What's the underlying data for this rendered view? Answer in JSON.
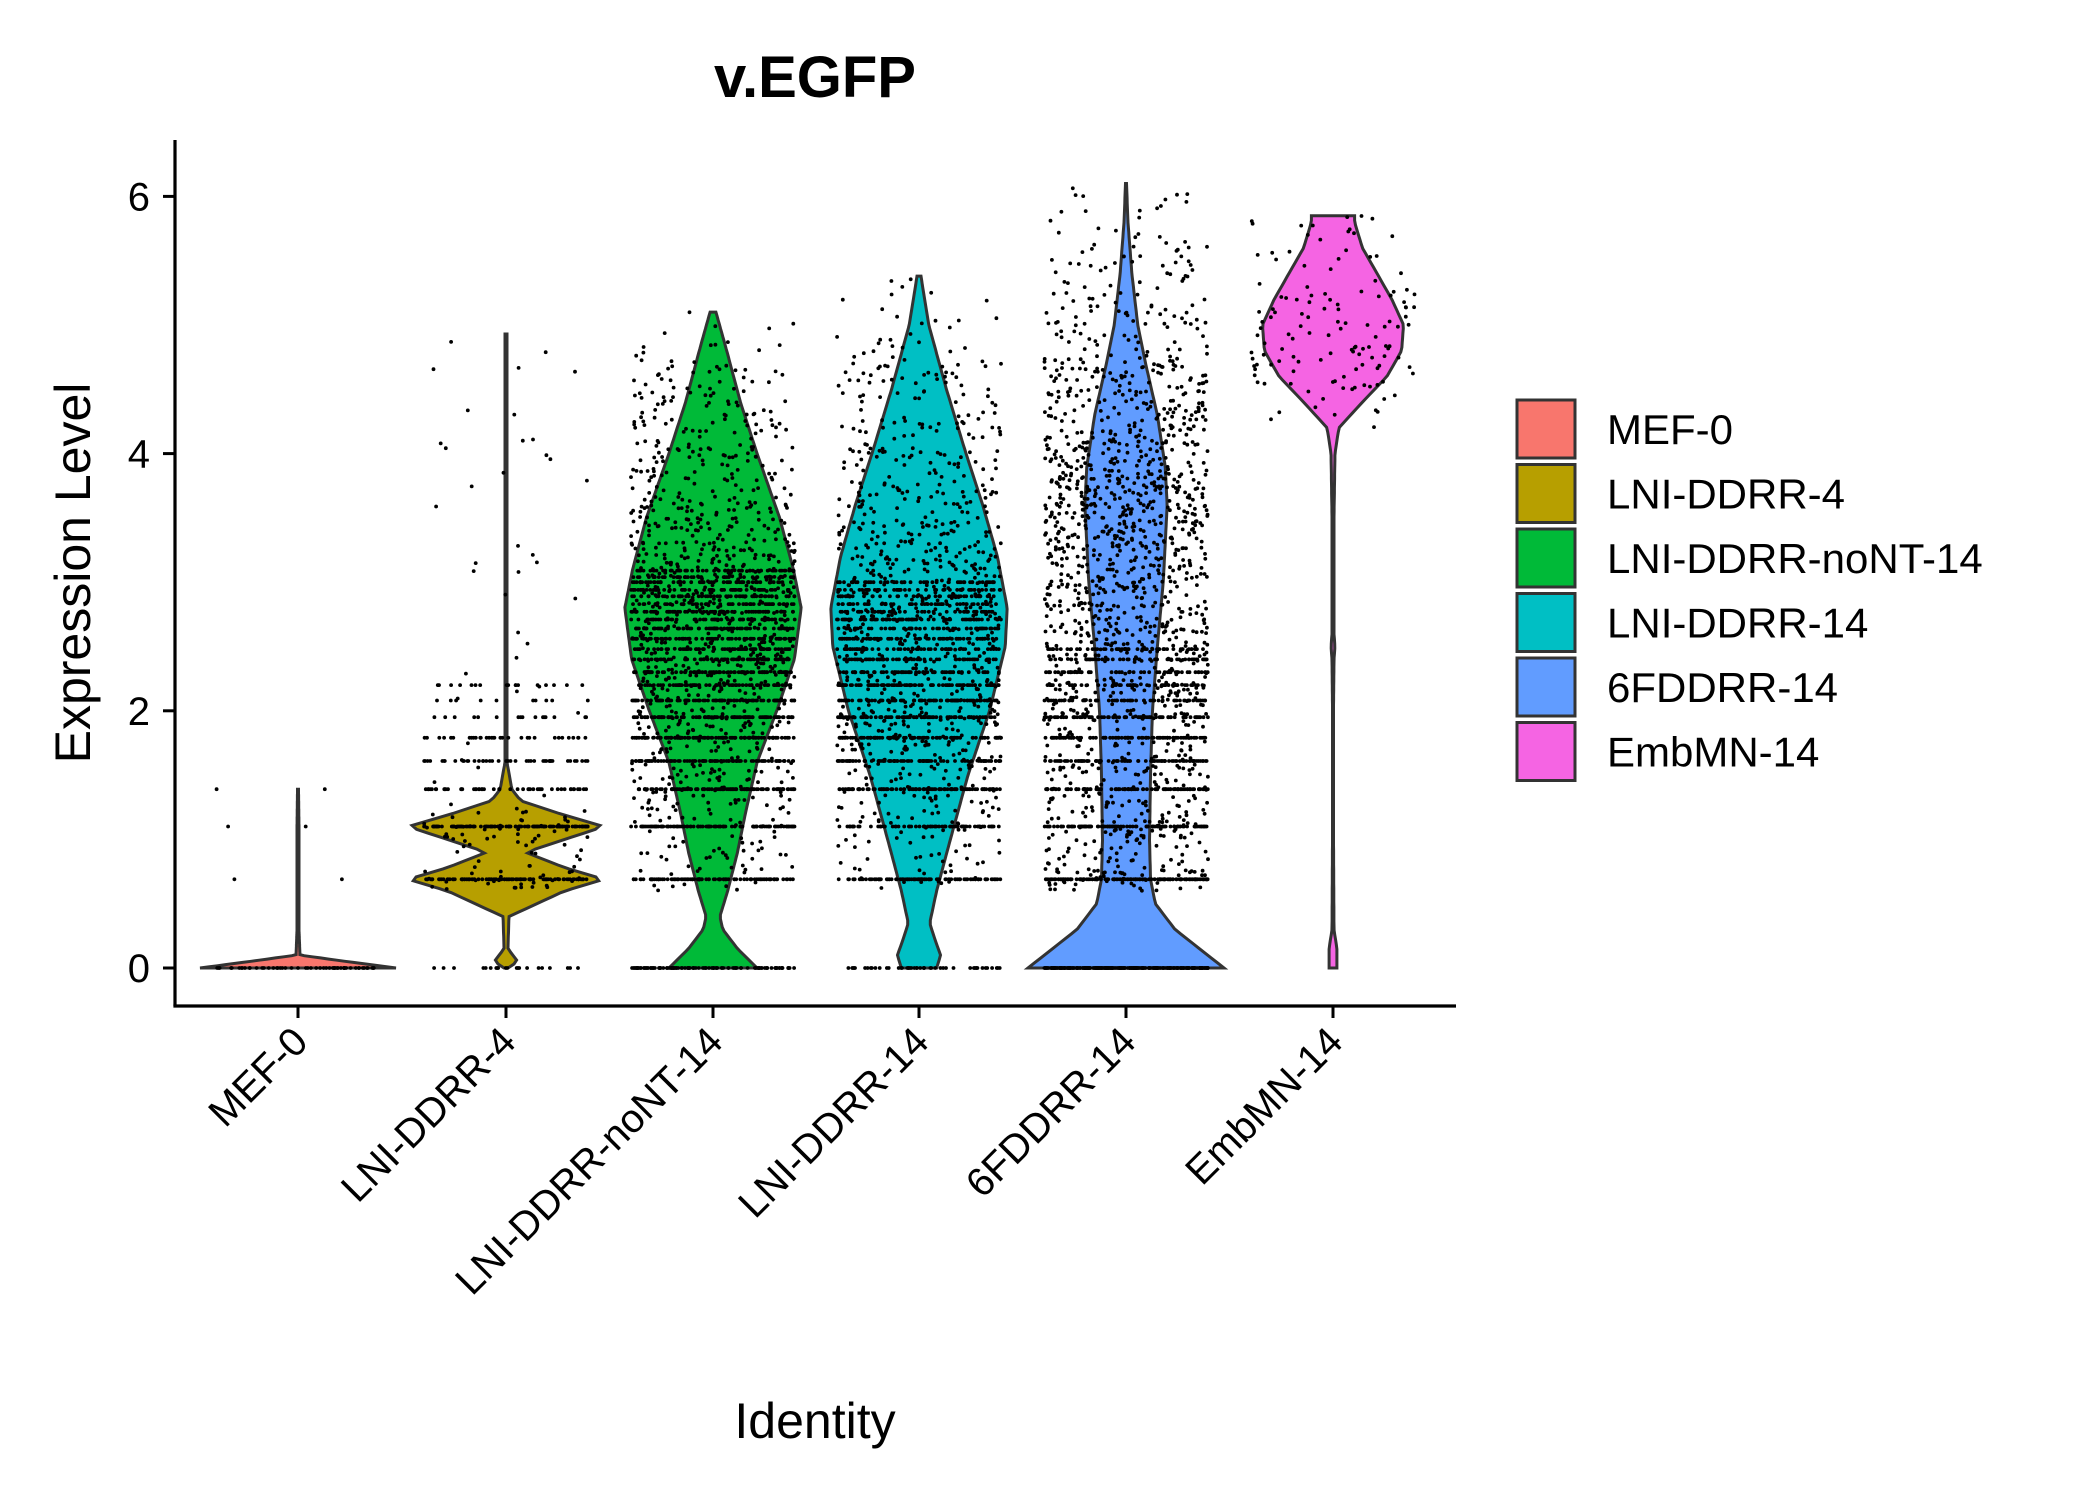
{
  "chart_data": {
    "type": "violin",
    "title": "v.EGFP",
    "xlabel": "Identity",
    "ylabel": "Expression Level",
    "ylim": [
      -0.3,
      6.4
    ],
    "yticks": [
      0,
      2,
      4,
      6
    ],
    "grid": false,
    "legend_position": "right",
    "categories": [
      "MEF-0",
      "LNI-DDRR-4",
      "LNI-DDRR-noNT-14",
      "LNI-DDRR-14",
      "6FDDRR-14",
      "EmbMN-14"
    ],
    "colors": [
      "#F8766D",
      "#B79F00",
      "#00BA38",
      "#00BFC4",
      "#619CFF",
      "#F564E3"
    ],
    "series": [
      {
        "name": "MEF-0",
        "y_max": 1.39,
        "density": [
          [
            0,
            1.0
          ],
          [
            0.05,
            0.5
          ],
          [
            0.1,
            0.02
          ],
          [
            0.3,
            0.01
          ],
          [
            0.7,
            0.01
          ],
          [
            1.1,
            0.01
          ],
          [
            1.39,
            0.005
          ]
        ],
        "levels": [
          0,
          0.69,
          1.1,
          1.39
        ],
        "n_points": 60,
        "level_weights": [
          0.9,
          0.04,
          0.04,
          0.02
        ]
      },
      {
        "name": "LNI-DDRR-4",
        "y_max": 4.93,
        "density": [
          [
            0,
            0.02
          ],
          [
            0.05,
            0.12
          ],
          [
            0.15,
            0.02
          ],
          [
            0.4,
            0.03
          ],
          [
            0.6,
            0.6
          ],
          [
            0.69,
            1.0
          ],
          [
            0.78,
            0.6
          ],
          [
            0.9,
            0.2
          ],
          [
            1.0,
            0.6
          ],
          [
            1.1,
            1.0
          ],
          [
            1.2,
            0.55
          ],
          [
            1.3,
            0.15
          ],
          [
            1.39,
            0.06
          ],
          [
            1.6,
            0.01
          ],
          [
            2.5,
            0.01
          ],
          [
            4.93,
            0.01
          ]
        ],
        "levels": [
          0,
          0.69,
          1.1,
          1.39,
          1.61,
          1.79,
          1.95,
          2.08,
          2.2
        ],
        "n_points": 520,
        "level_weights": [
          0.05,
          0.2,
          0.2,
          0.1,
          0.06,
          0.05,
          0.04,
          0.03,
          0.03
        ],
        "continuous_weight": 0.24
      },
      {
        "name": "LNI-DDRR-noNT-14",
        "y_max": 5.1,
        "density": [
          [
            0,
            0.45
          ],
          [
            0.15,
            0.25
          ],
          [
            0.3,
            0.1
          ],
          [
            0.4,
            0.07
          ],
          [
            0.6,
            0.15
          ],
          [
            0.9,
            0.25
          ],
          [
            1.2,
            0.33
          ],
          [
            1.6,
            0.45
          ],
          [
            2.0,
            0.65
          ],
          [
            2.4,
            0.83
          ],
          [
            2.8,
            0.9
          ],
          [
            3.1,
            0.82
          ],
          [
            3.5,
            0.68
          ],
          [
            4.0,
            0.45
          ],
          [
            4.4,
            0.28
          ],
          [
            4.8,
            0.14
          ],
          [
            5.1,
            0.03
          ]
        ],
        "levels": [
          0,
          0.69,
          1.1,
          1.39,
          1.61,
          1.79,
          1.95,
          2.08,
          2.2,
          2.3,
          2.4,
          2.48,
          2.56,
          2.64,
          2.71,
          2.77,
          2.83,
          2.89,
          2.94,
          3.0,
          3.04,
          3.09
        ],
        "n_points": 2600,
        "level_weights": [
          0.04,
          0.04,
          0.04,
          0.04,
          0.04,
          0.04,
          0.04,
          0.035,
          0.035,
          0.03,
          0.03,
          0.03,
          0.03,
          0.025,
          0.025,
          0.025,
          0.02,
          0.02,
          0.02,
          0.02,
          0.02,
          0.02
        ],
        "continuous_weight": 0.35
      },
      {
        "name": "LNI-DDRR-14",
        "y_max": 5.38,
        "density": [
          [
            0,
            0.18
          ],
          [
            0.1,
            0.22
          ],
          [
            0.25,
            0.15
          ],
          [
            0.35,
            0.11
          ],
          [
            0.6,
            0.18
          ],
          [
            1.0,
            0.32
          ],
          [
            1.5,
            0.5
          ],
          [
            2.0,
            0.72
          ],
          [
            2.5,
            0.88
          ],
          [
            2.8,
            0.9
          ],
          [
            3.2,
            0.8
          ],
          [
            3.6,
            0.65
          ],
          [
            4.0,
            0.48
          ],
          [
            4.5,
            0.28
          ],
          [
            5.0,
            0.1
          ],
          [
            5.38,
            0.02
          ]
        ],
        "levels": [
          0,
          0.69,
          1.1,
          1.39,
          1.61,
          1.79,
          1.95,
          2.08,
          2.2,
          2.3,
          2.4,
          2.48,
          2.56,
          2.64,
          2.71,
          2.77,
          2.83,
          2.89,
          2.94,
          3.0
        ],
        "n_points": 2200,
        "level_weights": [
          0.02,
          0.04,
          0.04,
          0.04,
          0.04,
          0.04,
          0.04,
          0.035,
          0.035,
          0.03,
          0.03,
          0.03,
          0.03,
          0.025,
          0.025,
          0.025,
          0.02,
          0.02,
          0.02,
          0.02
        ],
        "continuous_weight": 0.42
      },
      {
        "name": "6FDDRR-14",
        "y_max": 6.1,
        "density": [
          [
            0,
            1.0
          ],
          [
            0.15,
            0.75
          ],
          [
            0.3,
            0.5
          ],
          [
            0.5,
            0.3
          ],
          [
            0.69,
            0.25
          ],
          [
            1.0,
            0.24
          ],
          [
            1.5,
            0.25
          ],
          [
            2.0,
            0.27
          ],
          [
            2.5,
            0.32
          ],
          [
            3.0,
            0.38
          ],
          [
            3.3,
            0.4
          ],
          [
            3.6,
            0.42
          ],
          [
            3.9,
            0.4
          ],
          [
            4.3,
            0.32
          ],
          [
            4.7,
            0.2
          ],
          [
            5.0,
            0.12
          ],
          [
            5.4,
            0.06
          ],
          [
            5.8,
            0.02
          ],
          [
            6.1,
            0.005
          ]
        ],
        "levels": [
          0,
          0.69,
          1.1,
          1.39,
          1.61,
          1.79,
          1.95,
          2.08,
          2.2,
          2.3,
          2.4,
          2.48
        ],
        "n_points": 2600,
        "level_weights": [
          0.1,
          0.06,
          0.04,
          0.035,
          0.03,
          0.03,
          0.025,
          0.025,
          0.02,
          0.02,
          0.02,
          0.02
        ],
        "continuous_weight": 0.56
      },
      {
        "name": "EmbMN-14",
        "y_max": 5.85,
        "density": [
          [
            0,
            0.04
          ],
          [
            0.15,
            0.04
          ],
          [
            0.3,
            0.01
          ],
          [
            1.0,
            0.005
          ],
          [
            2.0,
            0.005
          ],
          [
            2.4,
            0.01
          ],
          [
            2.5,
            0.02
          ],
          [
            2.6,
            0.01
          ],
          [
            3.5,
            0.01
          ],
          [
            4.0,
            0.02
          ],
          [
            4.2,
            0.06
          ],
          [
            4.4,
            0.3
          ],
          [
            4.6,
            0.55
          ],
          [
            4.8,
            0.7
          ],
          [
            5.0,
            0.72
          ],
          [
            5.2,
            0.6
          ],
          [
            5.4,
            0.45
          ],
          [
            5.6,
            0.3
          ],
          [
            5.8,
            0.22
          ],
          [
            5.85,
            0.22
          ]
        ],
        "levels": [],
        "n_points": 130,
        "level_weights": [],
        "continuous_weight": 1.0,
        "continuous_range": [
          4.2,
          5.85
        ]
      }
    ]
  }
}
